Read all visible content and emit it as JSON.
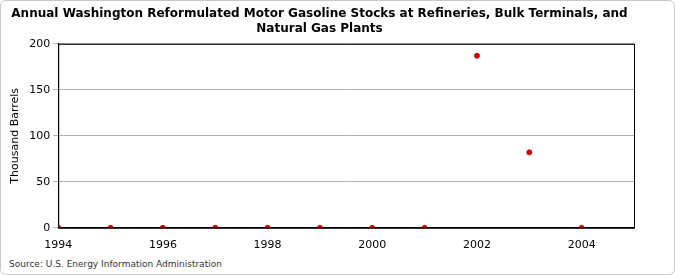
{
  "chart_data": {
    "type": "scatter",
    "title": [
      "Annual Washington Reformulated Motor Gasoline Stocks at Refineries, Bulk Terminals, and",
      "Natural Gas Plants"
    ],
    "y_label": "Thousand Barrels",
    "source": "Source: U.S. Energy Information Administration",
    "x": [
      1994,
      1995,
      1996,
      1997,
      1998,
      1999,
      2000,
      2001,
      2002,
      2003,
      2004
    ],
    "values": [
      0,
      0,
      0,
      0,
      0,
      0,
      0,
      0,
      187,
      82,
      0
    ],
    "color": "#cc0000",
    "marker": "circle",
    "xlim": [
      1994,
      2005
    ],
    "xticks": [
      1994,
      1996,
      1998,
      2000,
      2002,
      2004
    ],
    "ylim": [
      0,
      200
    ],
    "yticks": [
      0,
      50,
      100,
      150,
      200
    ],
    "grid": true
  }
}
